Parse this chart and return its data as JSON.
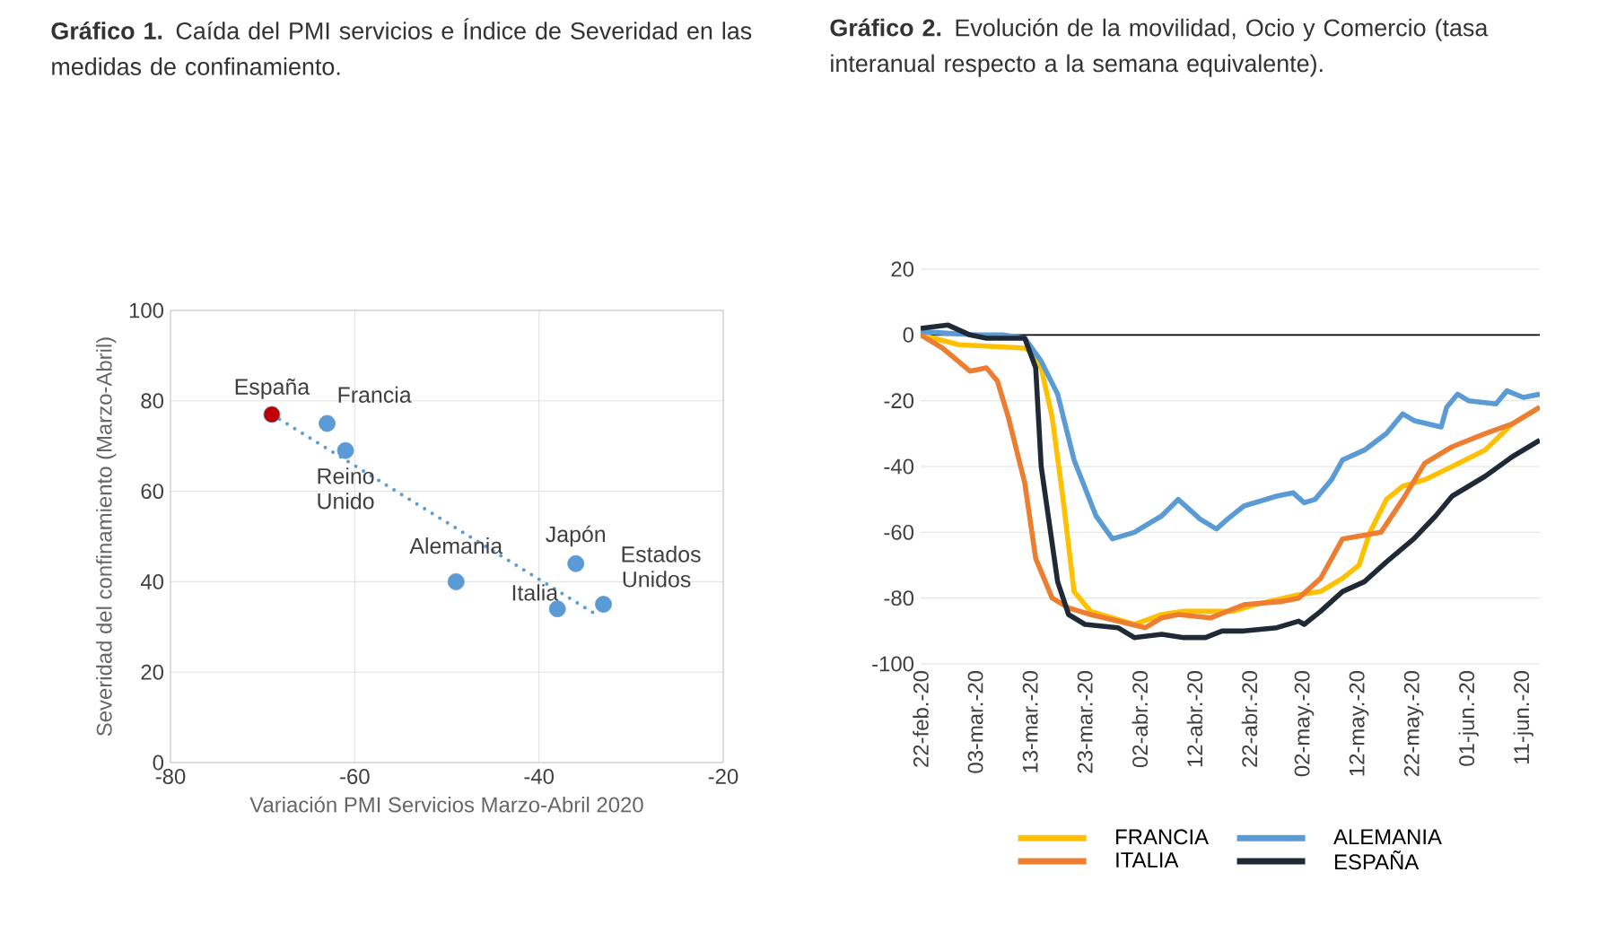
{
  "chart_data": [
    {
      "type": "scatter",
      "title": "**Gráfico 1.** Caída del PMI servicios e Índice de Severidad en las medidas de confinamiento.",
      "xlabel": "Variación PMI Servicios Marzo-Abril 2020",
      "ylabel": "Severidad del confinamiento (Marzo-Abril)",
      "xlim": [
        -80,
        -20
      ],
      "xticks": [
        -80,
        -60,
        -40,
        -20
      ],
      "ylim": [
        0,
        100
      ],
      "yticks": [
        0,
        20,
        40,
        60,
        80,
        100
      ],
      "grid": true,
      "series": [
        {
          "marker": "circle",
          "color": "#5b9bd5",
          "colors": [
            "#c00000",
            "#5b9bd5",
            "#5b9bd5",
            "#5b9bd5",
            "#5b9bd5",
            "#5b9bd5",
            "#5b9bd5"
          ],
          "x": [
            -69,
            -63,
            -61,
            -49,
            -36,
            -38,
            -33
          ],
          "values": [
            77,
            75,
            69,
            40,
            44,
            34,
            35
          ]
        },
        {
          "type": "line",
          "line_style": "dotted",
          "marker": "none",
          "color": "#5b9bd5",
          "x": [
            -69,
            -34
          ],
          "values": [
            77,
            33
          ]
        }
      ],
      "annotations": [
        {
          "text": "España",
          "x": -69,
          "y": 77
        },
        {
          "text": "Francia",
          "x": -63,
          "y": 75
        },
        {
          "text": "Reino Unido",
          "x": -61,
          "y": 69
        },
        {
          "text": "Alemania",
          "x": -49,
          "y": 40
        },
        {
          "text": "Japón",
          "x": -36,
          "y": 44
        },
        {
          "text": "Italia",
          "x": -38,
          "y": 34
        },
        {
          "text": "Estados Unidos",
          "x": -33,
          "y": 35
        }
      ]
    },
    {
      "type": "line",
      "title": "**Gráfico 2.** Evolución de la movilidad, Ocio y Comercio (tasa interanual respecto a la semana equivalente).",
      "xlim": [
        "2020-02-22",
        "2020-06-14"
      ],
      "ylim": [
        -100,
        20
      ],
      "yticks": [
        -100,
        -80,
        -60,
        -40,
        -20,
        0,
        20
      ],
      "grid": "y",
      "legend": "bottom",
      "xticks": [
        {
          "value": "2020-02-22",
          "label": "22-feb.-20"
        },
        {
          "value": "2020-03-03",
          "label": "03-mar.-20"
        },
        {
          "value": "2020-03-13",
          "label": "13-mar.-20"
        },
        {
          "value": "2020-03-23",
          "label": "23-mar.-20"
        },
        {
          "value": "2020-04-02",
          "label": "02-abr.-20"
        },
        {
          "value": "2020-04-12",
          "label": "12-abr.-20"
        },
        {
          "value": "2020-04-22",
          "label": "22-abr.-20"
        },
        {
          "value": "2020-05-02",
          "label": "02-may.-20"
        },
        {
          "value": "2020-05-12",
          "label": "12-may.-20"
        },
        {
          "value": "2020-05-22",
          "label": "22-may.-20"
        },
        {
          "value": "2020-06-01",
          "label": "01-jun.-20"
        },
        {
          "value": "2020-06-11",
          "label": "11-jun.-20"
        }
      ],
      "ref_lines": [
        {
          "axis": "y",
          "value": 0,
          "color": "#000000"
        }
      ],
      "series": [
        {
          "name": "FRANCIA",
          "color": "#ffc000",
          "x": [
            "2020-02-22",
            "2020-02-29",
            "2020-03-12",
            "2020-03-13",
            "2020-03-15",
            "2020-03-17",
            "2020-03-19",
            "2020-03-21",
            "2020-03-24",
            "2020-03-28",
            "2020-04-01",
            "2020-04-06",
            "2020-04-10",
            "2020-04-19",
            "2020-04-23",
            "2020-05-01",
            "2020-05-05",
            "2020-05-09",
            "2020-05-12",
            "2020-05-14",
            "2020-05-17",
            "2020-05-20",
            "2020-05-24",
            "2020-05-29",
            "2020-06-04",
            "2020-06-09",
            "2020-06-14"
          ],
          "values": [
            0,
            -3,
            -4,
            -5,
            -10,
            -25,
            -50,
            -78,
            -84,
            -86,
            -88,
            -85,
            -84,
            -84,
            -82,
            -79,
            -78,
            -74,
            -70,
            -60,
            -50,
            -46,
            -44,
            -40,
            -35,
            -27,
            -22
          ]
        },
        {
          "name": "ALEMANIA",
          "color": "#5b9bd5",
          "x": [
            "2020-02-22",
            "2020-03-03",
            "2020-03-08",
            "2020-03-12",
            "2020-03-15",
            "2020-03-18",
            "2020-03-21",
            "2020-03-25",
            "2020-03-28",
            "2020-04-01",
            "2020-04-06",
            "2020-04-09",
            "2020-04-11",
            "2020-04-13",
            "2020-04-16",
            "2020-04-18",
            "2020-04-21",
            "2020-04-27",
            "2020-04-30",
            "2020-05-02",
            "2020-05-04",
            "2020-05-07",
            "2020-05-09",
            "2020-05-13",
            "2020-05-17",
            "2020-05-20",
            "2020-05-22",
            "2020-05-27",
            "2020-05-28",
            "2020-05-30",
            "2020-06-01",
            "2020-06-06",
            "2020-06-08",
            "2020-06-11",
            "2020-06-14"
          ],
          "values": [
            1,
            0,
            0,
            -1,
            -8,
            -18,
            -38,
            -55,
            -62,
            -60,
            -55,
            -50,
            -53,
            -56,
            -59,
            -56,
            -52,
            -49,
            -48,
            -51,
            -50,
            -44,
            -38,
            -35,
            -30,
            -24,
            -26,
            -28,
            -22,
            -18,
            -20,
            -21,
            -17,
            -19,
            -18
          ]
        },
        {
          "name": "ITALIA",
          "color": "#ed7d31",
          "x": [
            "2020-02-22",
            "2020-02-26",
            "2020-03-02",
            "2020-03-05",
            "2020-03-07",
            "2020-03-09",
            "2020-03-12",
            "2020-03-14",
            "2020-03-17",
            "2020-03-20",
            "2020-03-24",
            "2020-03-29",
            "2020-04-03",
            "2020-04-06",
            "2020-04-09",
            "2020-04-15",
            "2020-04-21",
            "2020-04-28",
            "2020-05-01",
            "2020-05-05",
            "2020-05-09",
            "2020-05-16",
            "2020-05-20",
            "2020-05-24",
            "2020-05-29",
            "2020-06-04",
            "2020-06-09",
            "2020-06-14"
          ],
          "values": [
            0,
            -4,
            -11,
            -10,
            -14,
            -25,
            -45,
            -68,
            -80,
            -83,
            -85,
            -87,
            -89,
            -86,
            -85,
            -86,
            -82,
            -81,
            -80,
            -74,
            -62,
            -60,
            -50,
            -39,
            -34,
            -30,
            -27,
            -22
          ]
        },
        {
          "name": "ESPAÑA",
          "color": "#1f2a36",
          "x": [
            "2020-02-22",
            "2020-02-27",
            "2020-03-02",
            "2020-03-05",
            "2020-03-12",
            "2020-03-14",
            "2020-03-15",
            "2020-03-18",
            "2020-03-20",
            "2020-03-23",
            "2020-03-29",
            "2020-04-01",
            "2020-04-06",
            "2020-04-10",
            "2020-04-14",
            "2020-04-17",
            "2020-04-21",
            "2020-04-27",
            "2020-05-01",
            "2020-05-02",
            "2020-05-05",
            "2020-05-09",
            "2020-05-13",
            "2020-05-17",
            "2020-05-22",
            "2020-05-26",
            "2020-05-29",
            "2020-06-04",
            "2020-06-09",
            "2020-06-14"
          ],
          "values": [
            2,
            3,
            0,
            -1,
            -1,
            -10,
            -40,
            -75,
            -85,
            -88,
            -89,
            -92,
            -91,
            -92,
            -92,
            -90,
            -90,
            -89,
            -87,
            -88,
            -84,
            -78,
            -75,
            -69,
            -62,
            -55,
            -49,
            -43,
            -37,
            -32
          ]
        }
      ]
    }
  ]
}
